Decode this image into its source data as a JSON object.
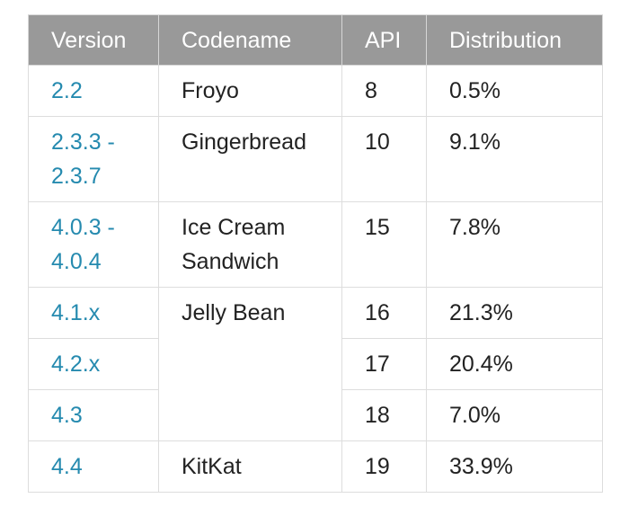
{
  "table": {
    "headers": {
      "version": "Version",
      "codename": "Codename",
      "api": "API",
      "distribution": "Distribution"
    },
    "rows": [
      {
        "version": "2.2",
        "codename": "Froyo",
        "api": "8",
        "distribution": "0.5%"
      },
      {
        "version": "2.3.3 - 2.3.7",
        "codename": "Gingerbread",
        "api": "10",
        "distribution": "9.1%"
      },
      {
        "version": "4.0.3 - 4.0.4",
        "codename": "Ice Cream Sandwich",
        "api": "15",
        "distribution": "7.8%"
      },
      {
        "version": "4.1.x",
        "codename": "Jelly Bean",
        "api": "16",
        "distribution": "21.3%"
      },
      {
        "version": "4.2.x",
        "api": "17",
        "distribution": "20.4%"
      },
      {
        "version": "4.3",
        "api": "18",
        "distribution": "7.0%"
      },
      {
        "version": "4.4",
        "codename": "KitKat",
        "api": "19",
        "distribution": "33.9%"
      }
    ]
  },
  "colors": {
    "header_bg": "#999999",
    "header_text": "#ffffff",
    "link": "#258aaf",
    "border": "#dddddd",
    "text": "#222222"
  }
}
